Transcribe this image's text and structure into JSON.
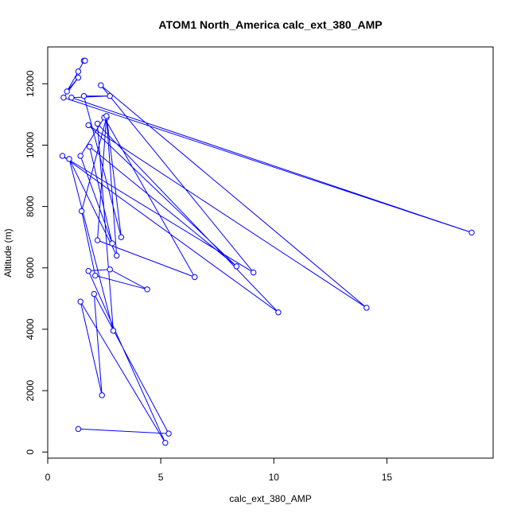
{
  "chart_data": {
    "type": "line",
    "title": "ATOM1 North_America calc_ext_380_AMP",
    "xlabel": "calc_ext_380_AMP",
    "ylabel": "Altitude (m)",
    "xlim": [
      0,
      19.7
    ],
    "ylim": [
      -200,
      13200
    ],
    "x_ticks": [
      0,
      5,
      10,
      15
    ],
    "x_tick_labels": [
      "0",
      "5",
      "10",
      "15"
    ],
    "y_ticks": [
      0,
      2000,
      4000,
      6000,
      8000,
      10000,
      12000
    ],
    "y_tick_labels": [
      "0",
      "2000",
      "4000",
      "6000",
      "8000",
      "10000",
      "12000"
    ],
    "grid": false,
    "series": [
      {
        "color": "#0000ff",
        "marker": "open-circle",
        "x": [
          1.35,
          5.35,
          2.05,
          2.4,
          1.45,
          5.2,
          1.8,
          2.75,
          4.4,
          2.1,
          1.5,
          2.6,
          3.05,
          0.95,
          2.9,
          2.2,
          10.2,
          0.65,
          9.1,
          2.35,
          14.1,
          1.8,
          8.35,
          1.85,
          2.85,
          1.45,
          2.5,
          6.5,
          2.2,
          2.6,
          3.25,
          1.6,
          2.75,
          1.05,
          18.75,
          0.7,
          1.35,
          0.85,
          1.35,
          1.6,
          1.65
        ],
        "y": [
          750,
          600,
          5150,
          1850,
          4900,
          300,
          5900,
          5950,
          5300,
          5750,
          7850,
          10900,
          6400,
          9550,
          3950,
          10700,
          4550,
          9650,
          5850,
          11950,
          4700,
          10650,
          6050,
          9950,
          6800,
          9650,
          10900,
          5700,
          6900,
          10950,
          7000,
          11600,
          11600,
          11550,
          7150,
          11550,
          12200,
          11750,
          12400,
          12750,
          12750
        ]
      }
    ]
  }
}
